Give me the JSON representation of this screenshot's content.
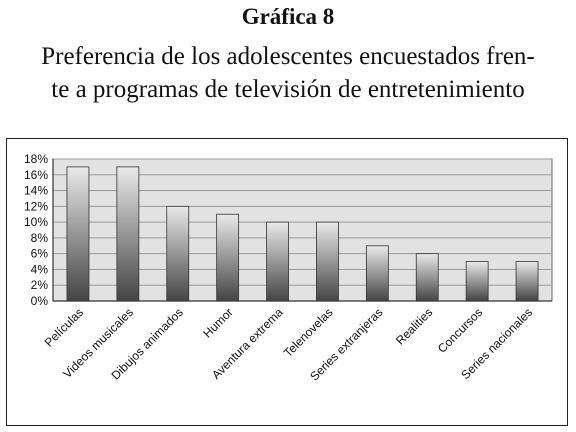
{
  "heading": {
    "title": "Gráfica 8",
    "subtitle_line1": "Preferencia de los adolescentes encuestados fren-",
    "subtitle_line2": "te a programas de televisión de entretenimiento"
  },
  "chart_data": {
    "type": "bar",
    "categories": [
      "Películas",
      "Videos musicales",
      "Dibujos animados",
      "Humor",
      "Aventura extrema",
      "Telenovelas",
      "Series extranjeras",
      "Realities",
      "Concursos",
      "Series nacionales"
    ],
    "values": [
      17,
      17,
      12,
      11,
      10,
      10,
      7,
      6,
      5,
      5
    ],
    "ylim": [
      0,
      18
    ],
    "yticks": [
      0,
      2,
      4,
      6,
      8,
      10,
      12,
      14,
      16,
      18
    ],
    "ytick_labels": [
      "0%",
      "2%",
      "4%",
      "6%",
      "8%",
      "10%",
      "12%",
      "14%",
      "16%",
      "18%"
    ],
    "y_unit": "%",
    "grid": true,
    "legend": "none",
    "colors": {
      "plot_bg": "#e2e2e2",
      "bar_top": "#e9e9e9",
      "bar_bottom": "#444444",
      "grid": "#9a9a9a"
    }
  }
}
